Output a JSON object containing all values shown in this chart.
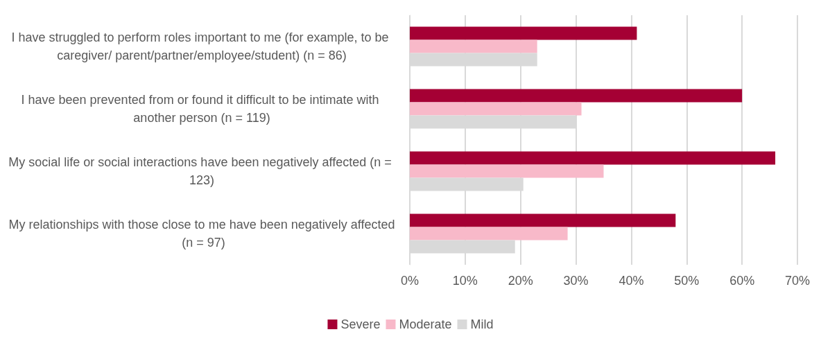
{
  "chart_data": {
    "type": "bar",
    "orientation": "horizontal",
    "categories": [
      "I have struggled to perform roles important to me (for example, to be caregiver/ parent/partner/employee/student) (n = 86)",
      "I have been prevented from or found it difficult to be intimate with another person (n = 119)",
      "My social life or social interactions have been negatively affected (n = 123)",
      "My relationships with those close to me have been negatively affected (n = 97)"
    ],
    "series": [
      {
        "name": "Severe",
        "color": "#a50034",
        "values": [
          41,
          60,
          66,
          48
        ]
      },
      {
        "name": "Moderate",
        "color": "#f8b9c9",
        "values": [
          23,
          31,
          35,
          28.5
        ]
      },
      {
        "name": "Mild",
        "color": "#d9d9d9",
        "values": [
          23,
          30,
          20.5,
          19
        ]
      }
    ],
    "xlim": [
      0,
      70
    ],
    "xticks": [
      {
        "value": 0,
        "label": "0%"
      },
      {
        "value": 10,
        "label": "10%"
      },
      {
        "value": 20,
        "label": "20%"
      },
      {
        "value": 30,
        "label": "30%"
      },
      {
        "value": 40,
        "label": "40%"
      },
      {
        "value": 50,
        "label": "50%"
      },
      {
        "value": 60,
        "label": "60%"
      },
      {
        "value": 70,
        "label": "70%"
      }
    ],
    "grid": "x",
    "legend": "bottom"
  }
}
